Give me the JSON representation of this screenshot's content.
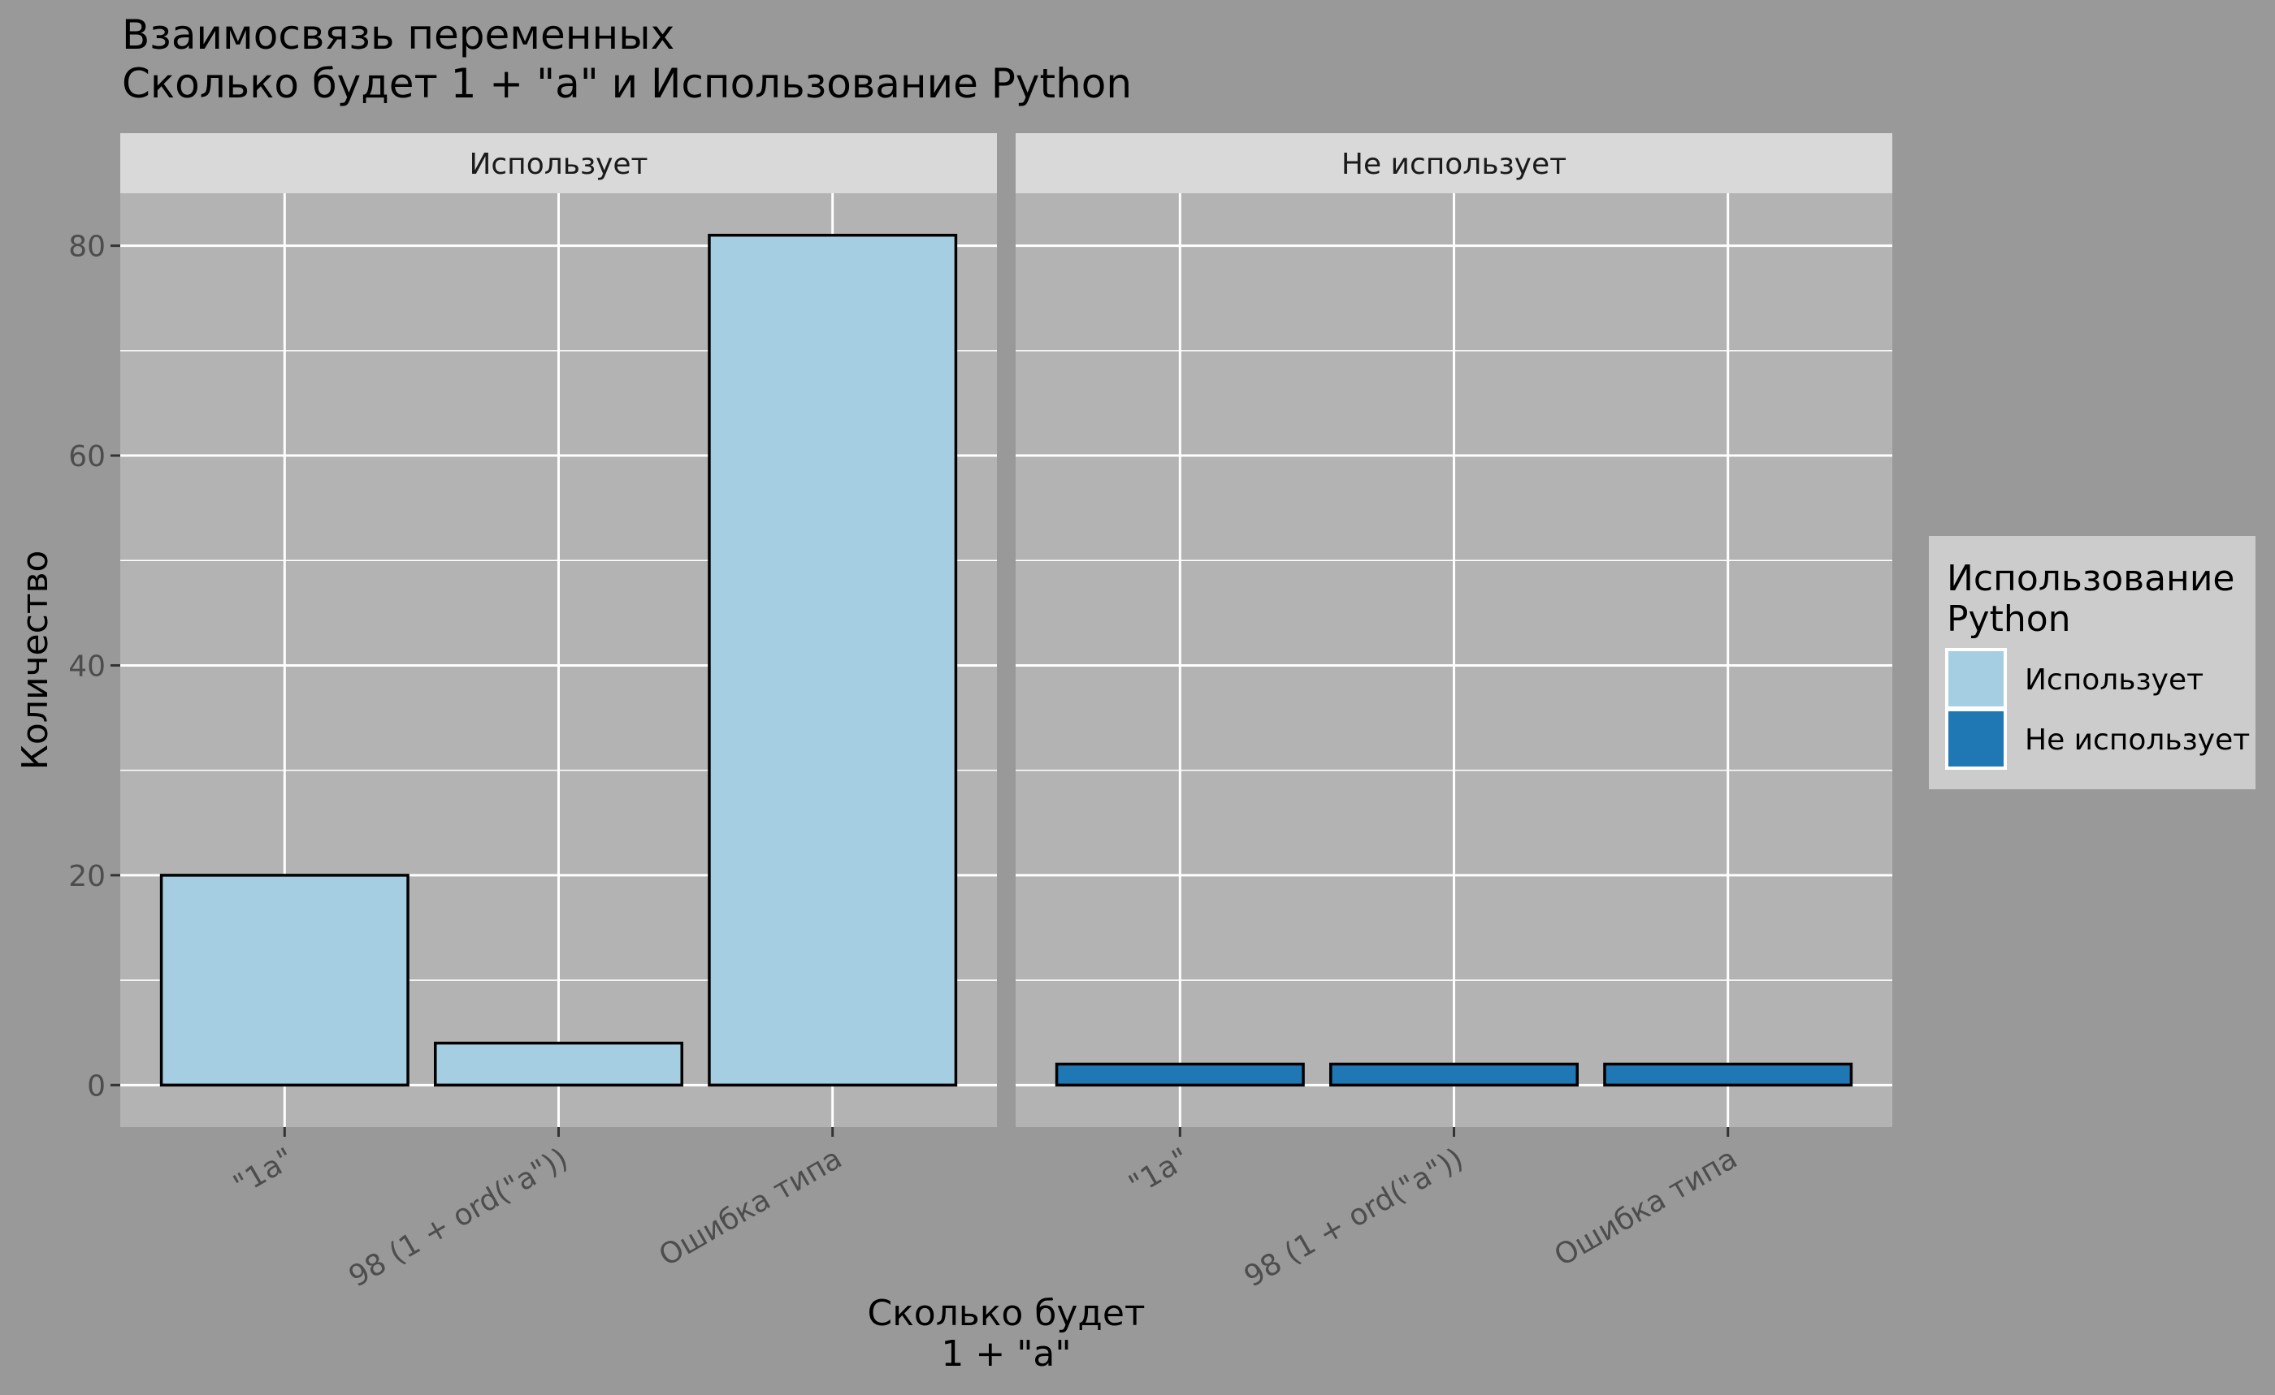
{
  "chart_data": {
    "type": "bar",
    "title_lines": [
      "Взаимосвязь переменных",
      " Сколько будет 1 + \"a\" и Использование Python"
    ],
    "xlabel_lines": [
      "Сколько будет",
      "1 + \"a\""
    ],
    "ylabel": "Количество",
    "categories": [
      "\"1a\"",
      "98 (1 + ord(\"a\"))",
      "Ошибка типа"
    ],
    "ylim": [
      -4,
      85
    ],
    "yticks": [
      0,
      20,
      40,
      60,
      80
    ],
    "grid": true,
    "legend": {
      "placement": "right",
      "title_lines": [
        "Использование",
        "Python"
      ],
      "items": [
        {
          "label": "Использует",
          "color": "#A6CEE3"
        },
        {
          "label": "Не использует",
          "color": "#1F78B4"
        }
      ]
    },
    "facets": [
      {
        "name": "Использует",
        "color": "#A6CEE3",
        "values": [
          20,
          4,
          81
        ]
      },
      {
        "name": "Не использует",
        "color": "#1F78B4",
        "values": [
          2,
          2,
          2
        ]
      }
    ],
    "colors": {
      "background": "#999999",
      "panel": "#B3B3B3",
      "strip": "#D9D9D9",
      "legend_box": "#CCCCCC",
      "grid": "#FFFFFF",
      "bar_outline": "#000000"
    }
  }
}
